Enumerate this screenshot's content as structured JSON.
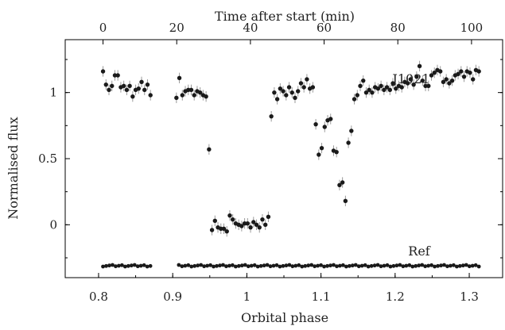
{
  "chart_data": {
    "type": "scatter",
    "title": "",
    "xlabel": "Orbital phase",
    "ylabel": "Normalised flux",
    "top_xlabel": "Time after start (min)",
    "xlim": [
      0.755,
      1.345
    ],
    "ylim": [
      -0.4,
      1.4
    ],
    "x_ticks": [
      "0.8",
      "0.9",
      "1",
      "1.1",
      "1.2",
      "1.3"
    ],
    "y_ticks": [
      "0",
      "0.5",
      "1"
    ],
    "top_x_ticks": [
      "0",
      "20",
      "40",
      "60",
      "80",
      "100"
    ],
    "grid": false,
    "series": [
      {
        "name": "J1021",
        "error": 0.04,
        "x": [
          0.806,
          0.81,
          0.814,
          0.818,
          0.822,
          0.826,
          0.83,
          0.834,
          0.838,
          0.842,
          0.846,
          0.85,
          0.854,
          0.858,
          0.862,
          0.866,
          0.87,
          0.905,
          0.909,
          0.913,
          0.917,
          0.921,
          0.925,
          0.929,
          0.933,
          0.937,
          0.941,
          0.945,
          0.949,
          0.953,
          0.957,
          0.961,
          0.965,
          0.969,
          0.973,
          0.977,
          0.981,
          0.985,
          0.989,
          0.993,
          0.997,
          1.001,
          1.005,
          1.009,
          1.013,
          1.017,
          1.021,
          1.025,
          1.029,
          1.033,
          1.037,
          1.041,
          1.045,
          1.049,
          1.053,
          1.057,
          1.061,
          1.065,
          1.069,
          1.073,
          1.077,
          1.081,
          1.085,
          1.089,
          1.093,
          1.097,
          1.101,
          1.105,
          1.109,
          1.113,
          1.117,
          1.121,
          1.125,
          1.129,
          1.133,
          1.137,
          1.141,
          1.145,
          1.149,
          1.153,
          1.157,
          1.161,
          1.165,
          1.169,
          1.173,
          1.177,
          1.181,
          1.185,
          1.189,
          1.193,
          1.197,
          1.201,
          1.205,
          1.209,
          1.213,
          1.217,
          1.221,
          1.225,
          1.229,
          1.233,
          1.237,
          1.241,
          1.245,
          1.249,
          1.253,
          1.257,
          1.261,
          1.265,
          1.269,
          1.273,
          1.277,
          1.281,
          1.285,
          1.289,
          1.293,
          1.297,
          1.301,
          1.305,
          1.309,
          1.313
        ],
        "y": [
          1.16,
          1.06,
          1.02,
          1.05,
          1.13,
          1.13,
          1.04,
          1.05,
          1.02,
          1.05,
          0.97,
          1.02,
          1.03,
          1.08,
          1.02,
          1.06,
          0.98,
          0.96,
          1.11,
          0.98,
          1.01,
          1.02,
          1.02,
          0.98,
          1.01,
          1.0,
          0.98,
          0.97,
          0.57,
          -0.04,
          0.03,
          -0.02,
          -0.03,
          -0.03,
          -0.05,
          0.07,
          0.04,
          0.01,
          0.0,
          -0.01,
          0.01,
          0.01,
          -0.02,
          0.02,
          0.0,
          -0.02,
          0.04,
          0.0,
          0.06,
          0.82,
          1.0,
          0.95,
          1.03,
          1.01,
          0.98,
          1.04,
          1.0,
          0.96,
          1.01,
          1.07,
          1.04,
          1.1,
          1.03,
          1.04,
          0.76,
          0.53,
          0.58,
          0.74,
          0.79,
          0.8,
          0.56,
          0.55,
          0.3,
          0.32,
          0.18,
          0.62,
          0.71,
          0.95,
          0.98,
          1.05,
          1.09,
          1.0,
          1.02,
          1.0,
          1.04,
          1.03,
          1.05,
          1.02,
          1.04,
          1.02,
          1.07,
          1.03,
          1.05,
          1.04,
          1.08,
          1.07,
          1.1,
          1.06,
          1.12,
          1.2,
          1.09,
          1.05,
          1.05,
          1.13,
          1.15,
          1.17,
          1.16,
          1.08,
          1.1,
          1.07,
          1.09,
          1.13,
          1.14,
          1.16,
          1.12,
          1.16,
          1.15,
          1.1,
          1.17,
          1.16
        ],
        "label": "J1021"
      },
      {
        "name": "Ref",
        "error": 0.008,
        "x_start": 0.806,
        "x_end": 1.313,
        "count": 120,
        "gap": [
          0.874,
          0.904
        ],
        "value": -0.31,
        "label": "Ref"
      }
    ]
  }
}
